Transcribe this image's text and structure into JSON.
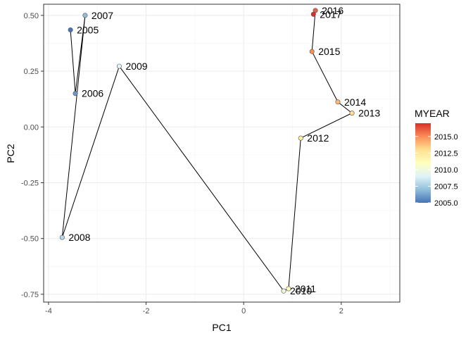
{
  "chart_data": {
    "type": "scatter",
    "xlabel": "PC1",
    "ylabel": "PC2",
    "xlim": [
      -4.1,
      3.2
    ],
    "ylim": [
      -0.785,
      0.55
    ],
    "x_ticks": [
      -4,
      -2,
      0,
      2
    ],
    "x_tick_labels": [
      "-4",
      "-2",
      "0",
      "2"
    ],
    "y_ticks": [
      -0.75,
      -0.5,
      -0.25,
      0.0,
      0.25,
      0.5
    ],
    "y_tick_labels": [
      "-0.75",
      "-0.50",
      "-0.25",
      "0.00",
      "0.25",
      "0.50"
    ],
    "grid": true,
    "connected": true,
    "points": [
      {
        "label": "2005",
        "x": -3.55,
        "y": 0.435,
        "year": 2005
      },
      {
        "label": "2006",
        "x": -3.45,
        "y": 0.15,
        "year": 2006
      },
      {
        "label": "2007",
        "x": -3.25,
        "y": 0.5,
        "year": 2007
      },
      {
        "label": "2008",
        "x": -3.72,
        "y": -0.495,
        "year": 2008
      },
      {
        "label": "2009",
        "x": -2.55,
        "y": 0.272,
        "year": 2009
      },
      {
        "label": "2010",
        "x": 0.82,
        "y": -0.735,
        "year": 2010
      },
      {
        "label": "2011",
        "x": 0.92,
        "y": -0.725,
        "year": 2011
      },
      {
        "label": "2012",
        "x": 1.17,
        "y": -0.05,
        "year": 2012
      },
      {
        "label": "2013",
        "x": 2.22,
        "y": 0.062,
        "year": 2013
      },
      {
        "label": "2014",
        "x": 1.93,
        "y": 0.112,
        "year": 2014
      },
      {
        "label": "2015",
        "x": 1.4,
        "y": 0.338,
        "year": 2015
      },
      {
        "label": "2016",
        "x": 1.47,
        "y": 0.522,
        "year": 2016
      },
      {
        "label": "2017",
        "x": 1.43,
        "y": 0.505,
        "year": 2017
      }
    ],
    "legend": {
      "title": "MYEAR",
      "placement": "right",
      "min": 2005,
      "max": 2017,
      "ticks": [
        2005.0,
        2007.5,
        2010.0,
        2012.5,
        2015.0
      ],
      "tick_labels": [
        "2005.0",
        "2007.5",
        "2010.0",
        "2012.5",
        "2015.0"
      ],
      "colors": [
        "#4575b4",
        "#91bfdb",
        "#e0f3f8",
        "#ffffbf",
        "#fee090",
        "#fc8d59",
        "#d73027"
      ]
    }
  }
}
